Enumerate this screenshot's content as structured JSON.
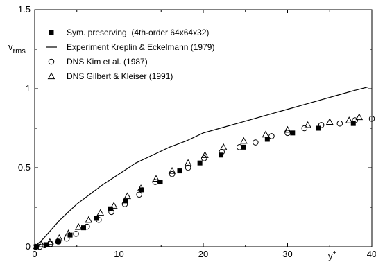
{
  "chart_data": {
    "type": "scatter",
    "xlabel": "y",
    "xlabel_superscript": "+",
    "ylabel": "v",
    "ylabel_subscript": "rms",
    "xlim": [
      0,
      40
    ],
    "ylim": [
      0,
      1.5
    ],
    "x_ticks": [
      {
        "value": 0,
        "label": "0"
      },
      {
        "value": 10,
        "label": "10"
      },
      {
        "value": 20,
        "label": "20"
      },
      {
        "value": 30,
        "label": "30"
      },
      {
        "value": 40,
        "label": "40"
      }
    ],
    "y_ticks": [
      {
        "value": 0,
        "label": "0"
      },
      {
        "value": 0.5,
        "label": "0.5"
      },
      {
        "value": 1,
        "label": "1"
      },
      {
        "value": 1.5,
        "label": "1.5"
      }
    ],
    "grid": false,
    "legend_position": "top-left",
    "series": [
      {
        "name": "Sym. preserving  (4th-order 64x64x32)",
        "style": "filled-square",
        "x": [
          0.2,
          1.4,
          2.8,
          4.2,
          5.8,
          7.3,
          9.0,
          10.8,
          12.7,
          14.9,
          17.2,
          19.6,
          22.1,
          24.8,
          27.6,
          30.6,
          33.7,
          37.8
        ],
        "y": [
          0.0,
          0.013,
          0.033,
          0.074,
          0.12,
          0.18,
          0.24,
          0.29,
          0.36,
          0.41,
          0.48,
          0.53,
          0.58,
          0.63,
          0.68,
          0.72,
          0.75,
          0.78
        ]
      },
      {
        "name": "Experiment Kreplin & Eckelmann (1979)",
        "style": "line",
        "x": [
          0,
          1,
          2,
          3,
          4,
          5,
          6,
          8,
          10,
          12,
          14,
          16,
          18,
          20,
          22,
          24,
          26,
          28,
          30,
          32,
          34,
          36,
          38,
          39.5
        ],
        "y": [
          0.0,
          0.05,
          0.11,
          0.17,
          0.22,
          0.27,
          0.31,
          0.39,
          0.46,
          0.53,
          0.58,
          0.63,
          0.67,
          0.72,
          0.75,
          0.78,
          0.81,
          0.84,
          0.87,
          0.9,
          0.93,
          0.96,
          0.99,
          1.01
        ]
      },
      {
        "name": "DNS Kim et al. (1987)",
        "style": "open-circle",
        "x": [
          0.1,
          0.6,
          1.2,
          1.9,
          2.8,
          3.8,
          4.9,
          6.2,
          7.6,
          9.1,
          10.7,
          12.4,
          14.3,
          16.3,
          18.2,
          20.1,
          22.2,
          24.3,
          26.2,
          28.1,
          30.0,
          32.0,
          34.0,
          36.2,
          38.0,
          40.0
        ],
        "y": [
          0.0,
          0.0,
          0.01,
          0.018,
          0.033,
          0.052,
          0.082,
          0.127,
          0.17,
          0.22,
          0.27,
          0.33,
          0.41,
          0.46,
          0.5,
          0.56,
          0.6,
          0.63,
          0.66,
          0.7,
          0.72,
          0.75,
          0.77,
          0.78,
          0.8,
          0.81
        ]
      },
      {
        "name": "DNS Gilbert & Kleiser (1991)",
        "style": "open-triangle",
        "x": [
          0.8,
          1.8,
          2.9,
          4.0,
          5.2,
          6.4,
          7.8,
          9.4,
          11.0,
          12.6,
          14.4,
          16.3,
          18.2,
          20.2,
          22.4,
          24.8,
          27.4,
          30.0,
          32.4,
          35.0,
          37.3,
          38.5
        ],
        "y": [
          0.015,
          0.03,
          0.055,
          0.085,
          0.125,
          0.17,
          0.215,
          0.26,
          0.32,
          0.37,
          0.43,
          0.48,
          0.53,
          0.58,
          0.63,
          0.67,
          0.71,
          0.74,
          0.77,
          0.79,
          0.8,
          0.82
        ]
      }
    ]
  }
}
